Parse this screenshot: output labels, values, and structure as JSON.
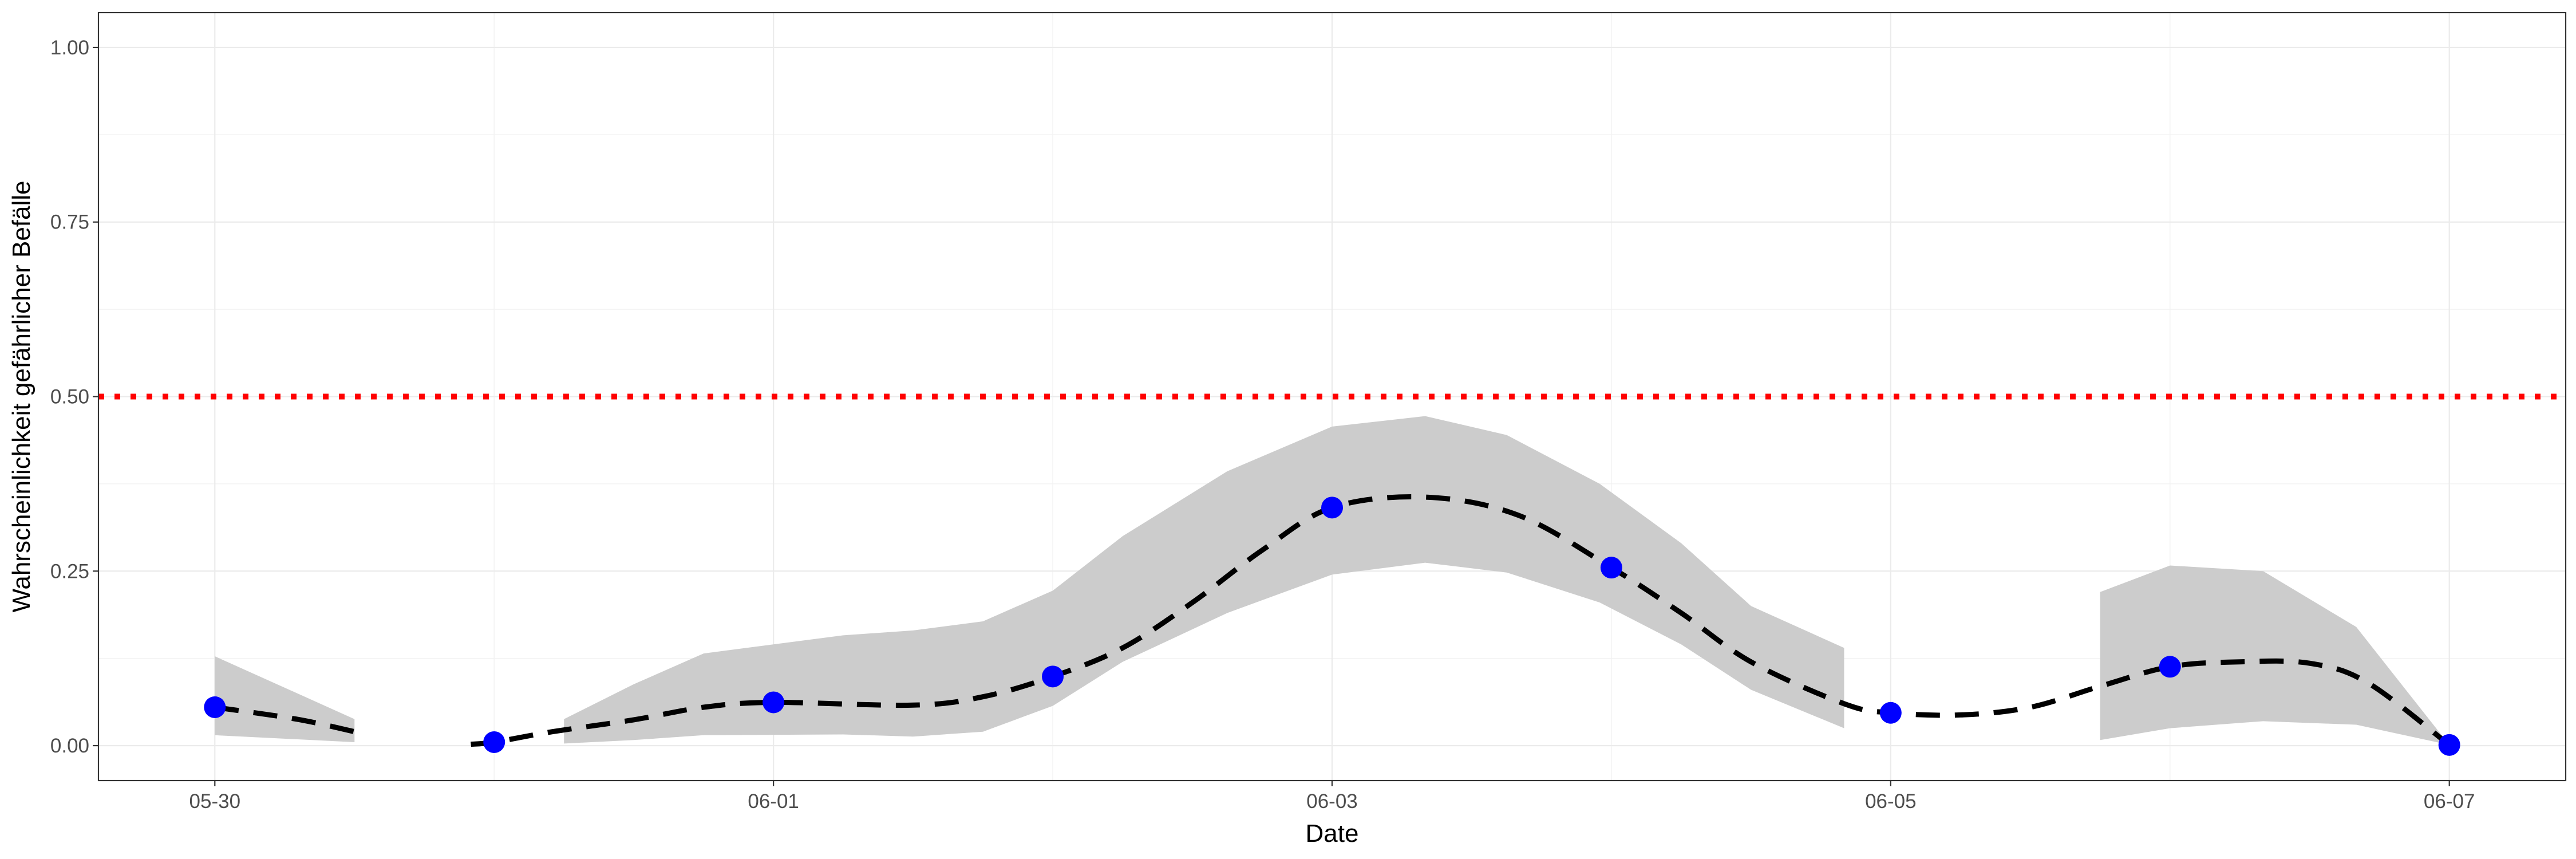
{
  "chart_data": {
    "type": "line",
    "xlabel": "Date",
    "ylabel": "Wahrscheinlichkeit gefährlicher Befälle",
    "x_ticks": [
      "05-30",
      "06-01",
      "06-03",
      "06-05",
      "06-07"
    ],
    "x_range": [
      "2022-05-29 14:00",
      "2022-06-07 10:00"
    ],
    "y_ticks": [
      "0.00",
      "0.25",
      "0.50",
      "0.75",
      "1.00"
    ],
    "ylim": [
      -0.05,
      1.05
    ],
    "grid": true,
    "threshold": {
      "value": 0.5,
      "style": "dotted",
      "color": "#ff0000"
    },
    "colors": {
      "points": "#0000ff",
      "line": "#000000",
      "band": "#cccccc"
    },
    "points": [
      {
        "x": "2022-05-30 00:00",
        "y": 0.055
      },
      {
        "x": "2022-05-31 00:00",
        "y": 0.005
      },
      {
        "x": "2022-06-01 00:00",
        "y": 0.062
      },
      {
        "x": "2022-06-02 00:00",
        "y": 0.099
      },
      {
        "x": "2022-06-03 00:00",
        "y": 0.341
      },
      {
        "x": "2022-06-04 00:00",
        "y": 0.255
      },
      {
        "x": "2022-06-05 00:00",
        "y": 0.047
      },
      {
        "x": "2022-06-06 00:00",
        "y": 0.113
      },
      {
        "x": "2022-06-07 00:00",
        "y": 0.001
      }
    ],
    "line": [
      [
        {
          "x": "2022-05-30 00:00",
          "y": 0.055
        },
        {
          "x": "2022-05-30 07:00",
          "y": 0.038
        },
        {
          "x": "2022-05-30 12:00",
          "y": 0.02
        }
      ],
      [
        {
          "x": "2022-05-30 22:00",
          "y": 0.002
        },
        {
          "x": "2022-05-31 00:00",
          "y": 0.005
        },
        {
          "x": "2022-05-31 05:00",
          "y": 0.02
        },
        {
          "x": "2022-05-31 12:00",
          "y": 0.037
        },
        {
          "x": "2022-05-31 18:00",
          "y": 0.055
        },
        {
          "x": "2022-06-01 00:00",
          "y": 0.062
        },
        {
          "x": "2022-06-01 12:00",
          "y": 0.058
        },
        {
          "x": "2022-06-01 18:00",
          "y": 0.07
        },
        {
          "x": "2022-06-02 00:00",
          "y": 0.099
        },
        {
          "x": "2022-06-02 06:00",
          "y": 0.14
        },
        {
          "x": "2022-06-02 12:00",
          "y": 0.205
        },
        {
          "x": "2022-06-02 18:00",
          "y": 0.28
        },
        {
          "x": "2022-06-03 00:00",
          "y": 0.341
        },
        {
          "x": "2022-06-03 08:00",
          "y": 0.356
        },
        {
          "x": "2022-06-03 16:00",
          "y": 0.33
        },
        {
          "x": "2022-06-04 00:00",
          "y": 0.255
        },
        {
          "x": "2022-06-04 06:00",
          "y": 0.19
        },
        {
          "x": "2022-06-04 12:00",
          "y": 0.12
        },
        {
          "x": "2022-06-04 20:00",
          "y": 0.06
        },
        {
          "x": "2022-06-05 00:00",
          "y": 0.047
        },
        {
          "x": "2022-06-05 06:00",
          "y": 0.044
        },
        {
          "x": "2022-06-05 12:00",
          "y": 0.055
        },
        {
          "x": "2022-06-05 18:00",
          "y": 0.085
        },
        {
          "x": "2022-06-06 00:00",
          "y": 0.113
        },
        {
          "x": "2022-06-06 06:00",
          "y": 0.12
        },
        {
          "x": "2022-06-06 12:00",
          "y": 0.118
        },
        {
          "x": "2022-06-06 17:00",
          "y": 0.09
        },
        {
          "x": "2022-06-07 00:00",
          "y": 0.001
        }
      ]
    ],
    "bands": [
      [
        {
          "x": "2022-05-30 00:00",
          "lo": 0.015,
          "hi": 0.128
        },
        {
          "x": "2022-05-30 12:00",
          "lo": 0.005,
          "hi": 0.038
        }
      ],
      [
        {
          "x": "2022-05-31 06:00",
          "lo": 0.003,
          "hi": 0.038
        },
        {
          "x": "2022-05-31 12:00",
          "lo": 0.008,
          "hi": 0.088
        },
        {
          "x": "2022-05-31 18:00",
          "lo": 0.015,
          "hi": 0.132
        },
        {
          "x": "2022-06-01 06:00",
          "lo": 0.016,
          "hi": 0.158
        },
        {
          "x": "2022-06-01 12:00",
          "lo": 0.013,
          "hi": 0.165
        },
        {
          "x": "2022-06-01 18:00",
          "lo": 0.02,
          "hi": 0.178
        },
        {
          "x": "2022-06-02 00:00",
          "lo": 0.057,
          "hi": 0.222
        },
        {
          "x": "2022-06-02 06:00",
          "lo": 0.12,
          "hi": 0.3
        },
        {
          "x": "2022-06-02 15:00",
          "lo": 0.19,
          "hi": 0.393
        },
        {
          "x": "2022-06-03 00:00",
          "lo": 0.245,
          "hi": 0.457
        },
        {
          "x": "2022-06-03 08:00",
          "lo": 0.262,
          "hi": 0.472
        },
        {
          "x": "2022-06-03 15:00",
          "lo": 0.248,
          "hi": 0.445
        },
        {
          "x": "2022-06-03 23:00",
          "lo": 0.205,
          "hi": 0.375
        },
        {
          "x": "2022-06-04 06:00",
          "lo": 0.145,
          "hi": 0.29
        },
        {
          "x": "2022-06-04 12:00",
          "lo": 0.08,
          "hi": 0.2
        },
        {
          "x": "2022-06-04 20:00",
          "lo": 0.025,
          "hi": 0.14
        }
      ],
      [
        {
          "x": "2022-06-05 18:00",
          "lo": 0.008,
          "hi": 0.22
        },
        {
          "x": "2022-06-06 00:00",
          "lo": 0.025,
          "hi": 0.258
        },
        {
          "x": "2022-06-06 08:00",
          "lo": 0.035,
          "hi": 0.25
        },
        {
          "x": "2022-06-06 16:00",
          "lo": 0.03,
          "hi": 0.17
        },
        {
          "x": "2022-06-07 00:00",
          "lo": 0.001,
          "hi": 0.001
        }
      ]
    ]
  }
}
